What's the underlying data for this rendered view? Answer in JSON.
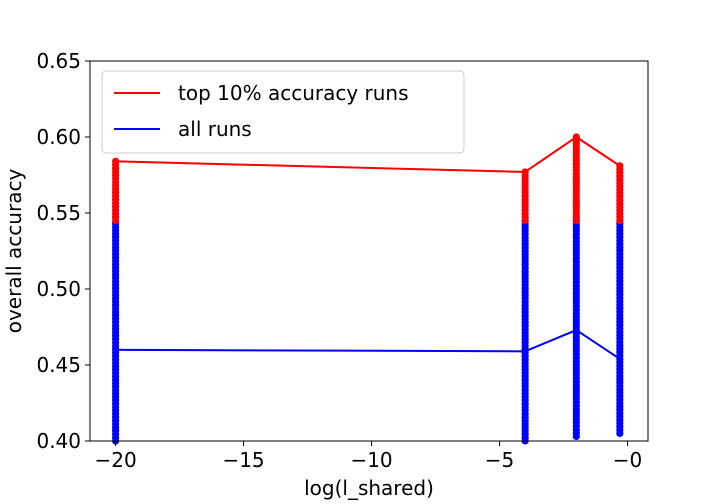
{
  "chart_data": {
    "type": "scatter",
    "xlabel": "log(l_shared)",
    "ylabel": "overall accuracy",
    "xlim": [
      -21,
      0.8
    ],
    "ylim": [
      0.4,
      0.65
    ],
    "xticks": [
      -20,
      -15,
      -10,
      -5,
      0
    ],
    "xtick_labels": [
      "−20",
      "−15",
      "−10",
      "−5",
      "−0"
    ],
    "yticks": [
      0.4,
      0.45,
      0.5,
      0.55,
      0.6,
      0.65
    ],
    "ytick_labels": [
      "0.40",
      "0.45",
      "0.50",
      "0.55",
      "0.60",
      "0.65"
    ],
    "grid": false,
    "legend_position": "upper-left",
    "series": [
      {
        "name": "top 10% accuracy runs",
        "color": "#ff0000",
        "line_x": [
          -20,
          -4,
          -2,
          -0.3
        ],
        "line_y": [
          0.584,
          0.577,
          0.6,
          0.581
        ],
        "points": [
          {
            "x": -20,
            "y_min": 0.545,
            "y_max": 0.584
          },
          {
            "x": -4,
            "y_min": 0.545,
            "y_max": 0.577
          },
          {
            "x": -2,
            "y_min": 0.545,
            "y_max": 0.6
          },
          {
            "x": -0.3,
            "y_min": 0.545,
            "y_max": 0.581
          }
        ]
      },
      {
        "name": "all runs",
        "color": "#0000ff",
        "line_x": [
          -20,
          -4,
          -2,
          -0.3
        ],
        "line_y": [
          0.46,
          0.459,
          0.473,
          0.454
        ],
        "points": [
          {
            "x": -20,
            "y_min": 0.4,
            "y_max": 0.543
          },
          {
            "x": -4,
            "y_min": 0.4,
            "y_max": 0.545
          },
          {
            "x": -2,
            "y_min": 0.403,
            "y_max": 0.545
          },
          {
            "x": -0.3,
            "y_min": 0.405,
            "y_max": 0.543
          }
        ]
      }
    ]
  }
}
